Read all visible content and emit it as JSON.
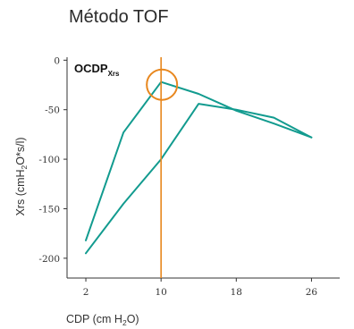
{
  "chart_data": {
    "type": "line",
    "title": "Método TOF",
    "xlabel": {
      "main": "CDP (cm H",
      "sub": "2",
      "tail": "O)"
    },
    "ylabel": {
      "main": "Xrs (cmH",
      "sub": "2",
      "tail": "O*s/l)"
    },
    "x_ticks": [
      2,
      10,
      18,
      26
    ],
    "y_ticks": [
      0,
      -50,
      -100,
      -150,
      -200
    ],
    "xlim": [
      0,
      29
    ],
    "ylim": [
      -220,
      3
    ],
    "grid": false,
    "series": [
      {
        "x": [
          2,
          6,
          10,
          14,
          18,
          22,
          26
        ],
        "values": [
          -182,
          -73,
          -22,
          -34,
          -51,
          -64,
          -78
        ]
      },
      {
        "x": [
          2,
          6,
          10,
          14,
          18,
          22,
          26
        ],
        "values": [
          -195,
          -145,
          -100,
          -44,
          -50,
          -58,
          -78
        ]
      }
    ],
    "vertical_line_x": 10,
    "highlight_point": {
      "x": 10,
      "y": -22
    },
    "annotation": {
      "main": "OCDP",
      "sub": "Xrs"
    },
    "colors": {
      "series": "#129b8f",
      "marker": "#e8871e",
      "axis": "#333333"
    }
  }
}
